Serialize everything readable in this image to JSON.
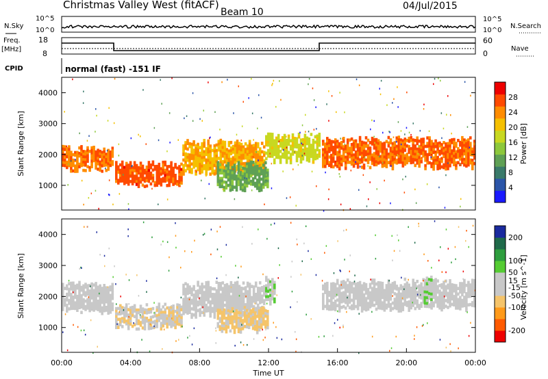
{
  "header": {
    "title": "Christmas Valley West (fitACF)",
    "beam": "Beam 10",
    "date": "04/Jul/2015"
  },
  "strip_panels": {
    "nsky": {
      "label": "N.Sky",
      "tick_top": "10^5",
      "tick_bottom": "10^0"
    },
    "nsearch": {
      "label": "N.Search",
      "tick_top": "10^5",
      "tick_bottom": "10^0"
    },
    "freq": {
      "label_line1": "Freq.",
      "label_line2": "[MHz]",
      "tick_top": "18",
      "tick_bottom": "8"
    },
    "nave": {
      "label": "Nave",
      "tick_top": "60",
      "tick_bottom": "0"
    },
    "cpid": {
      "label": "CPID",
      "mode": "normal (fast) -151 IF"
    }
  },
  "colors": {
    "power_scale": [
      "#1a1aff",
      "#2b55a8",
      "#3a7a6a",
      "#5fa055",
      "#8dc83c",
      "#c8d821",
      "#f5c000",
      "#ff8c00",
      "#ff4a00",
      "#ee0000"
    ],
    "velocity_scale": [
      "#ee0000",
      "#ff5a00",
      "#ff9a1a",
      "#f5c46a",
      "#c8c8c8",
      "#c8c8c8",
      "#55cc33",
      "#2e9e3e",
      "#1f6a4a",
      "#1a2a9e"
    ]
  },
  "chart_data": [
    {
      "type": "heatmap",
      "name": "power-panel",
      "ylabel": "Slant Range [km]",
      "ylim": [
        200,
        4500
      ],
      "yticks": [
        "1000",
        "2000",
        "3000",
        "4000"
      ],
      "x_range_hours": [
        0,
        24
      ],
      "colorbar": {
        "label": "Power [dB]",
        "ticks": [
          "4",
          "8",
          "12",
          "16",
          "20",
          "24",
          "28"
        ],
        "range": [
          0,
          32
        ]
      },
      "bands": [
        {
          "t": [
            0,
            3
          ],
          "r": [
            1500,
            2200
          ],
          "value": 25
        },
        {
          "t": [
            3.1,
            7
          ],
          "r": [
            1000,
            1700
          ],
          "value": 27
        },
        {
          "t": [
            7,
            11.8
          ],
          "r": [
            1400,
            2400
          ],
          "value": 22
        },
        {
          "t": [
            11.8,
            15
          ],
          "r": [
            1800,
            2600
          ],
          "value": 18
        },
        {
          "t": [
            15.1,
            24
          ],
          "r": [
            1600,
            2500
          ],
          "value": 26
        },
        {
          "t": [
            9,
            12
          ],
          "r": [
            900,
            1700
          ],
          "value": 12
        }
      ]
    },
    {
      "type": "heatmap",
      "name": "velocity-panel",
      "xlabel": "Time UT",
      "ylabel": "Slant Range [km]",
      "ylim": [
        200,
        4500
      ],
      "yticks": [
        "1000",
        "2000",
        "3000",
        "4000"
      ],
      "xticks": [
        "00:00",
        "04:00",
        "08:00",
        "12:00",
        "16:00",
        "20:00",
        "00:00"
      ],
      "colorbar": {
        "label": "Velocity [m s^-1]",
        "ticks": [
          "200",
          "100",
          "50",
          "15",
          "-15",
          "-50",
          "-100",
          "-200"
        ],
        "range": [
          -250,
          250
        ]
      },
      "bands": [
        {
          "t": [
            0,
            3
          ],
          "r": [
            1500,
            2400
          ],
          "value": 0
        },
        {
          "t": [
            3.1,
            7
          ],
          "r": [
            1000,
            1700
          ],
          "value": -40
        },
        {
          "t": [
            7,
            11.8
          ],
          "r": [
            1400,
            2400
          ],
          "value": 0
        },
        {
          "t": [
            11.8,
            12.4
          ],
          "r": [
            1800,
            2600
          ],
          "value": 40
        },
        {
          "t": [
            15.1,
            24
          ],
          "r": [
            1600,
            2500
          ],
          "value": 0
        },
        {
          "t": [
            9,
            12
          ],
          "r": [
            900,
            1600
          ],
          "value": -60
        },
        {
          "t": [
            21,
            21.5
          ],
          "r": [
            1600,
            2600
          ],
          "value": 40
        }
      ]
    }
  ]
}
